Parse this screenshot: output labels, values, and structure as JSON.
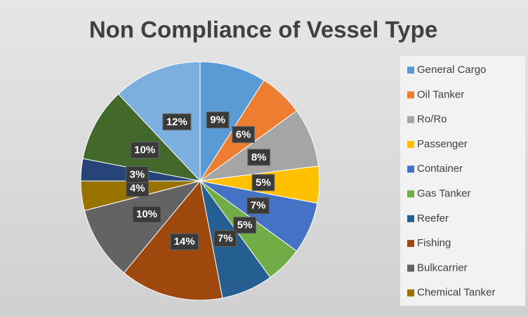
{
  "chart_data": {
    "type": "pie",
    "title": "Non Compliance of Vessel Type",
    "categories": [
      "General Cargo",
      "Oil Tanker",
      "Ro/Ro",
      "Passenger",
      "Container",
      "Gas Tanker",
      "Reefer",
      "Fishing",
      "Bulkcarrier",
      "Chemical Tanker",
      null,
      null,
      null
    ],
    "values": [
      9,
      6,
      8,
      5,
      7,
      5,
      7,
      14,
      10,
      4,
      3,
      10,
      12
    ],
    "value_labels": [
      "9%",
      "6%",
      "8%",
      "5%",
      "7%",
      "5%",
      "7%",
      "14%",
      "10%",
      "4%",
      "3%",
      "10%",
      "12%"
    ],
    "colors": [
      "#5b9bd5",
      "#ed7d31",
      "#a5a5a5",
      "#ffc000",
      "#4472c4",
      "#70ad47",
      "#255e91",
      "#9e480e",
      "#636363",
      "#997300",
      "#264478",
      "#43682b",
      "#7cafdd"
    ],
    "legend": "right"
  }
}
